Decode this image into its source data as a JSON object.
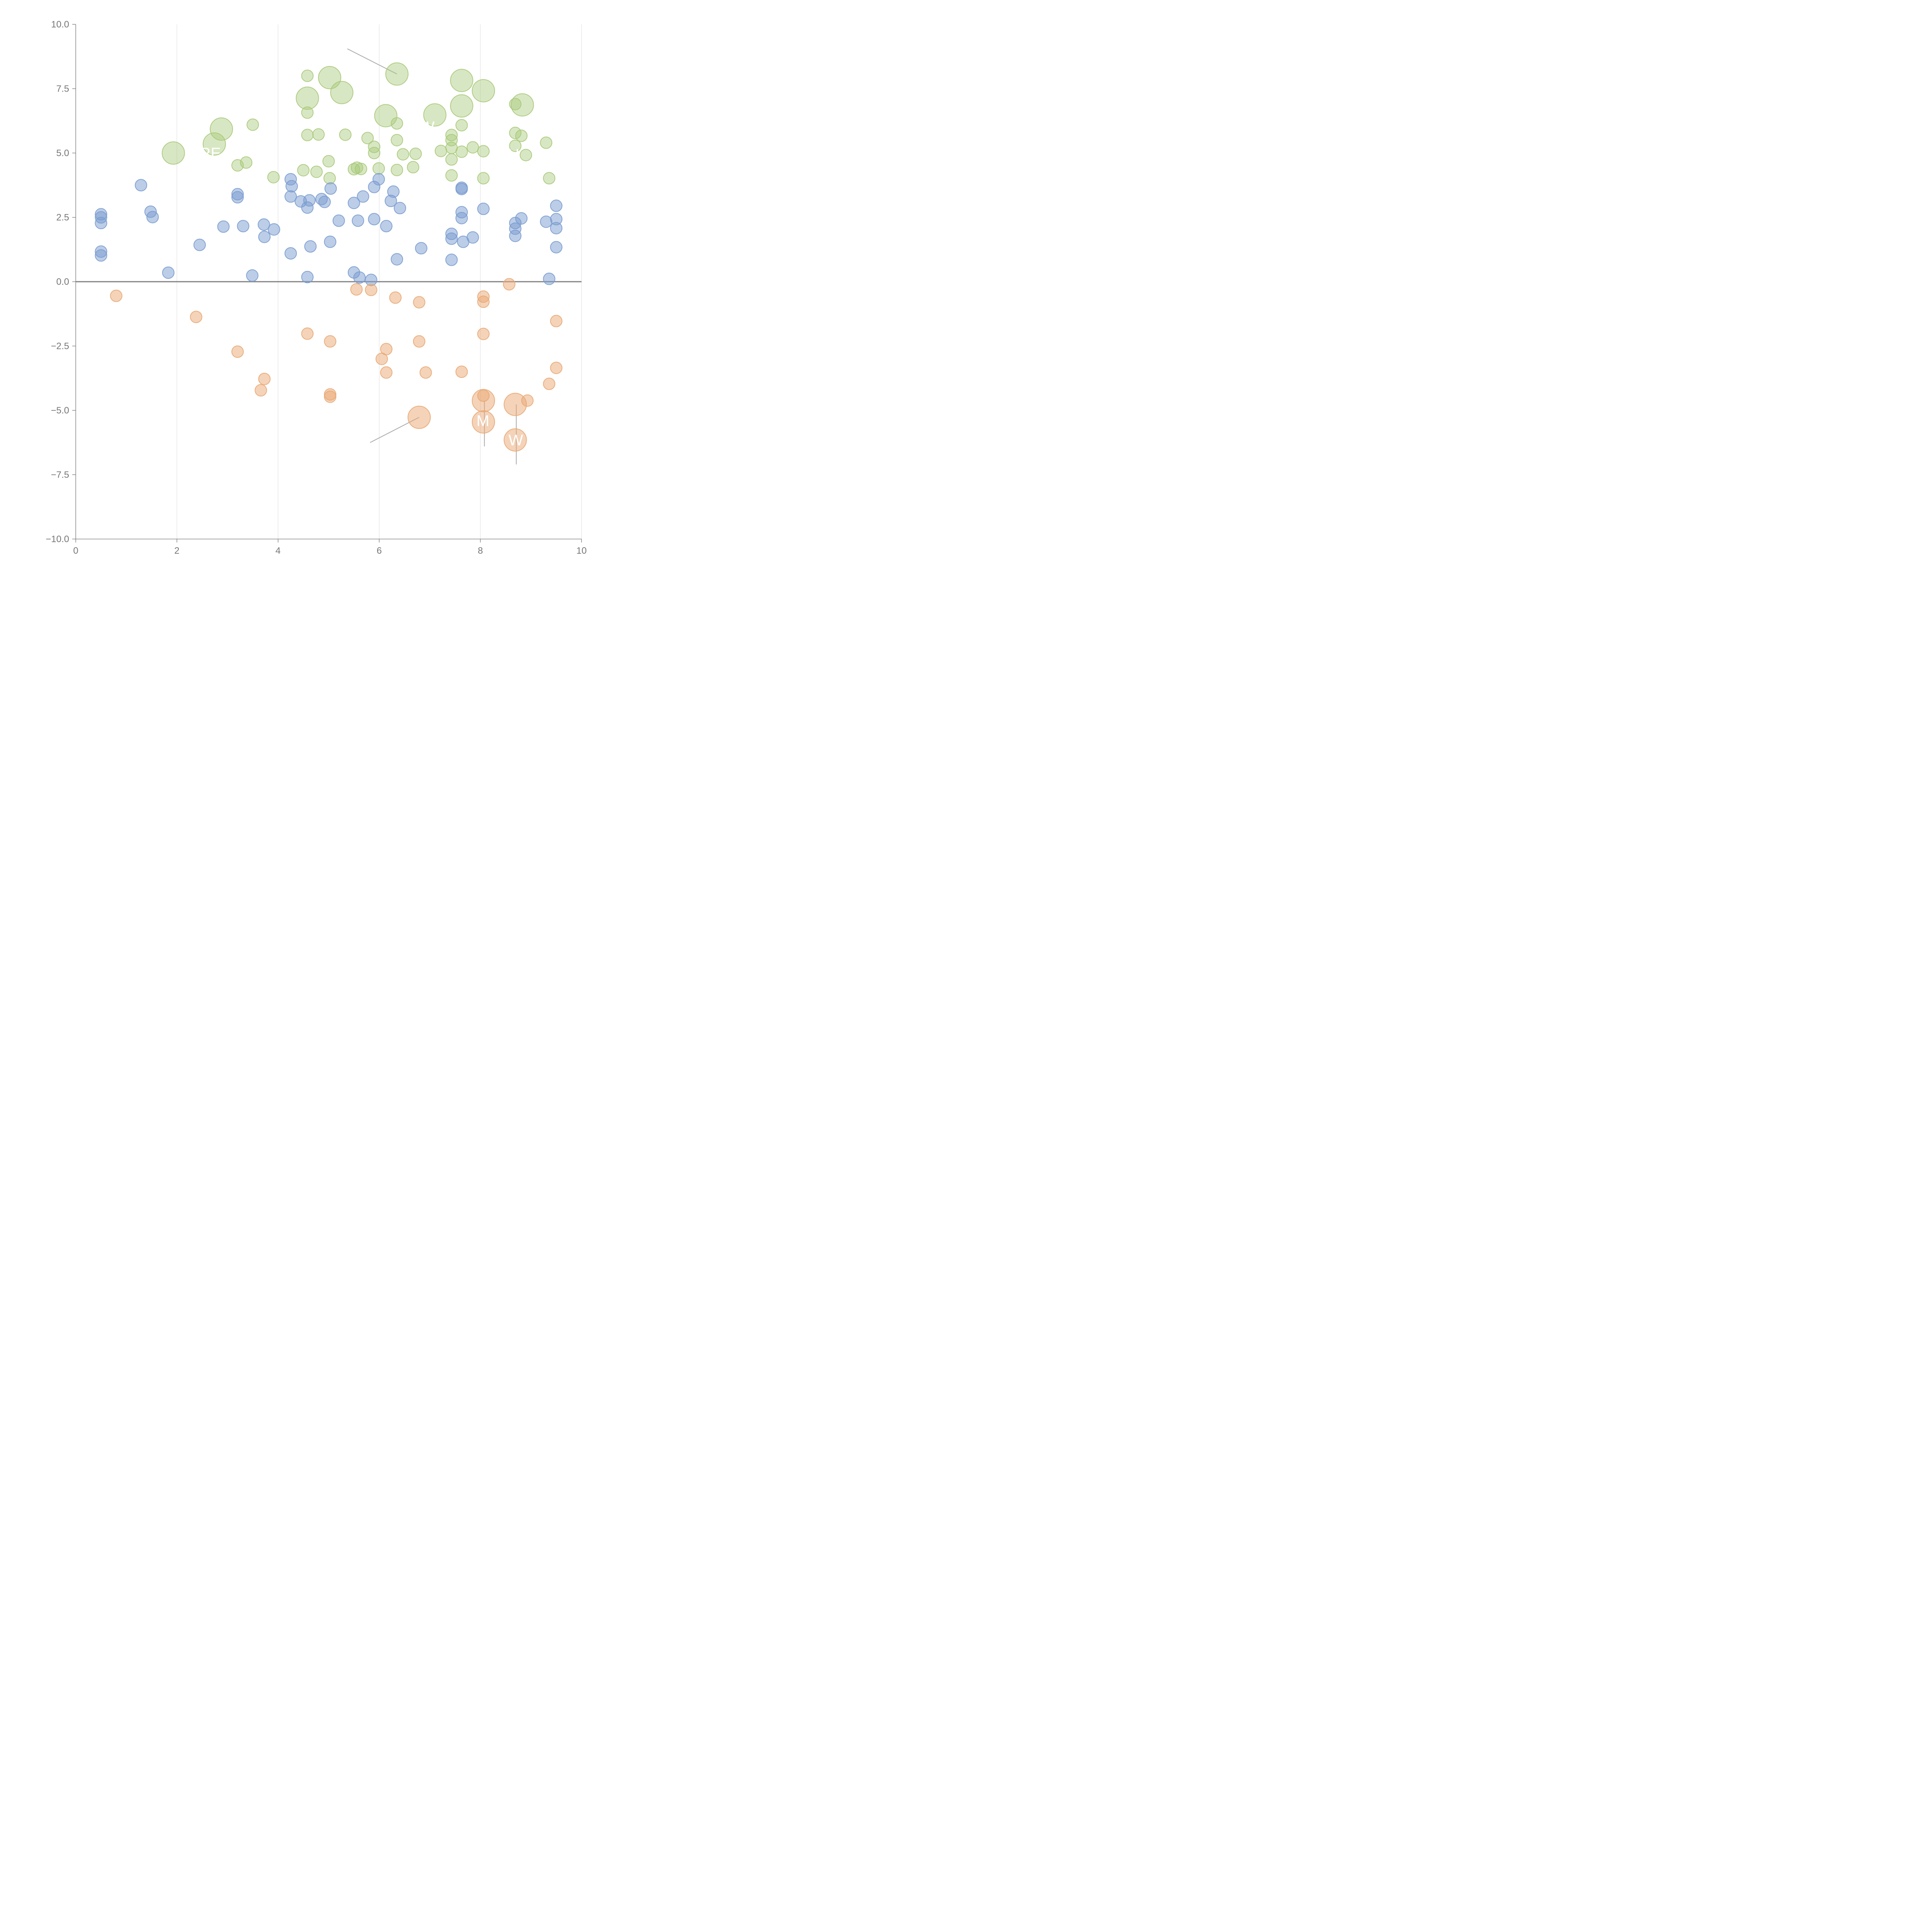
{
  "chart_data": {
    "type": "scatter",
    "title": "",
    "xlabel": "",
    "ylabel": "",
    "xlim": [
      0,
      10
    ],
    "ylim": [
      -10,
      10
    ],
    "xticks": [
      0,
      2,
      4,
      6,
      8,
      10
    ],
    "yticks": [
      -10,
      -7.5,
      -5,
      -2.5,
      0,
      2.5,
      5,
      7.5,
      10
    ],
    "xtick_labels": [
      "0",
      "2",
      "4",
      "6",
      "8",
      "10"
    ],
    "ytick_labels": [
      "−10.0",
      "−7.5",
      "−5.0",
      "−2.5",
      "0.0",
      "2.5",
      "5.0",
      "7.5",
      "10.0"
    ],
    "grid": "vertical",
    "colors": {
      "high": "#a9c97a",
      "mid": "#7a9cd0",
      "neg": "#e9a874",
      "axis": "#777777",
      "zero_line": "#808080",
      "grid": "#dddddd",
      "leader": "#aaaaaa"
    },
    "series": [
      {
        "name": "high",
        "points": [
          [
            1.93,
            5.0,
            1
          ],
          [
            2.74,
            5.35,
            1
          ],
          [
            2.88,
            5.93,
            1
          ],
          [
            3.2,
            4.52,
            0
          ],
          [
            3.37,
            4.63,
            0
          ],
          [
            3.5,
            6.1,
            0
          ],
          [
            3.91,
            4.06,
            0
          ],
          [
            4.5,
            4.33,
            0
          ],
          [
            4.58,
            8.0,
            0
          ],
          [
            4.58,
            7.13,
            1
          ],
          [
            4.58,
            6.57,
            0
          ],
          [
            4.58,
            5.7,
            0
          ],
          [
            4.76,
            4.27,
            0
          ],
          [
            4.8,
            5.72,
            0
          ],
          [
            5.0,
            4.68,
            0
          ],
          [
            5.02,
            4.02,
            0
          ],
          [
            5.02,
            7.93,
            1
          ],
          [
            5.26,
            7.35,
            1
          ],
          [
            5.33,
            5.71,
            0
          ],
          [
            5.5,
            4.37,
            0
          ],
          [
            5.56,
            4.43,
            0
          ],
          [
            5.64,
            4.38,
            0
          ],
          [
            5.77,
            5.58,
            0
          ],
          [
            5.9,
            5.24,
            0
          ],
          [
            5.9,
            5.0,
            0
          ],
          [
            5.99,
            4.4,
            0
          ],
          [
            6.13,
            6.45,
            1
          ],
          [
            6.35,
            8.07,
            1
          ],
          [
            6.35,
            6.15,
            0
          ],
          [
            6.35,
            5.5,
            0
          ],
          [
            6.35,
            4.34,
            0
          ],
          [
            6.47,
            4.95,
            0
          ],
          [
            6.67,
            4.45,
            0
          ],
          [
            6.72,
            4.97,
            0
          ],
          [
            7.1,
            6.48,
            1
          ],
          [
            7.22,
            5.08,
            0
          ],
          [
            7.43,
            5.7,
            0
          ],
          [
            7.43,
            5.5,
            0
          ],
          [
            7.43,
            5.2,
            0
          ],
          [
            7.43,
            4.75,
            0
          ],
          [
            7.43,
            4.13,
            0
          ],
          [
            7.63,
            7.82,
            1
          ],
          [
            7.63,
            6.83,
            1
          ],
          [
            7.63,
            6.08,
            0
          ],
          [
            7.63,
            5.05,
            0
          ],
          [
            7.85,
            5.22,
            0
          ],
          [
            8.06,
            7.42,
            1
          ],
          [
            8.06,
            5.07,
            0
          ],
          [
            8.06,
            4.02,
            0
          ],
          [
            8.69,
            6.9,
            0
          ],
          [
            8.69,
            5.78,
            0
          ],
          [
            8.69,
            5.28,
            0
          ],
          [
            8.81,
            5.67,
            0
          ],
          [
            8.83,
            6.87,
            1
          ],
          [
            8.9,
            4.92,
            0
          ],
          [
            9.3,
            5.4,
            0
          ],
          [
            9.36,
            4.02,
            0
          ]
        ]
      },
      {
        "name": "mid",
        "points": [
          [
            0.5,
            2.62
          ],
          [
            0.5,
            2.5
          ],
          [
            0.5,
            2.28
          ],
          [
            0.5,
            1.17
          ],
          [
            0.5,
            1.02
          ],
          [
            1.29,
            3.75
          ],
          [
            1.48,
            2.72
          ],
          [
            1.52,
            2.51
          ],
          [
            1.83,
            0.35
          ],
          [
            2.45,
            1.43
          ],
          [
            2.92,
            2.14
          ],
          [
            3.2,
            3.4
          ],
          [
            3.2,
            3.28
          ],
          [
            3.31,
            2.16
          ],
          [
            3.49,
            0.24
          ],
          [
            3.72,
            2.22
          ],
          [
            3.73,
            1.74
          ],
          [
            3.92,
            2.03
          ],
          [
            4.25,
            3.98
          ],
          [
            4.25,
            1.1
          ],
          [
            4.27,
            3.71
          ],
          [
            4.25,
            3.31
          ],
          [
            4.45,
            3.12
          ],
          [
            4.58,
            2.88
          ],
          [
            4.62,
            3.16
          ],
          [
            4.64,
            1.37
          ],
          [
            4.58,
            0.18
          ],
          [
            4.86,
            3.21
          ],
          [
            4.92,
            3.1
          ],
          [
            5.04,
            3.62
          ],
          [
            5.03,
            1.55
          ],
          [
            5.2,
            2.37
          ],
          [
            5.5,
            3.06
          ],
          [
            5.5,
            0.36
          ],
          [
            5.58,
            2.37
          ],
          [
            5.61,
            0.16
          ],
          [
            5.68,
            3.31
          ],
          [
            5.84,
            0.07
          ],
          [
            5.9,
            3.68
          ],
          [
            5.9,
            2.43
          ],
          [
            5.99,
            3.98
          ],
          [
            6.14,
            2.16
          ],
          [
            6.23,
            3.14
          ],
          [
            6.28,
            3.5
          ],
          [
            6.35,
            0.87
          ],
          [
            6.41,
            2.86
          ],
          [
            6.83,
            1.3
          ],
          [
            7.43,
            1.86
          ],
          [
            7.43,
            1.67
          ],
          [
            7.43,
            0.85
          ],
          [
            7.63,
            3.65
          ],
          [
            7.63,
            3.6
          ],
          [
            7.63,
            2.7
          ],
          [
            7.63,
            2.47
          ],
          [
            7.66,
            1.55
          ],
          [
            7.85,
            1.72
          ],
          [
            8.06,
            2.83
          ],
          [
            8.69,
            2.28
          ],
          [
            8.69,
            2.06
          ],
          [
            8.69,
            1.78
          ],
          [
            8.81,
            2.46
          ],
          [
            9.3,
            2.33
          ],
          [
            9.36,
            0.11
          ],
          [
            9.5,
            2.95
          ],
          [
            9.5,
            2.43
          ],
          [
            9.5,
            2.08
          ],
          [
            9.5,
            1.34
          ]
        ]
      },
      {
        "name": "neg",
        "points": [
          [
            0.8,
            -0.55,
            0
          ],
          [
            2.38,
            -1.37,
            0
          ],
          [
            3.2,
            -2.72,
            0
          ],
          [
            3.66,
            -4.22,
            0
          ],
          [
            3.73,
            -3.78,
            0
          ],
          [
            4.58,
            -2.02,
            0
          ],
          [
            5.03,
            -2.32,
            0
          ],
          [
            5.03,
            -4.38,
            0
          ],
          [
            5.03,
            -4.47,
            0
          ],
          [
            5.55,
            -0.3,
            0
          ],
          [
            5.84,
            -0.32,
            0
          ],
          [
            6.05,
            -3.0,
            0
          ],
          [
            6.14,
            -2.62,
            0
          ],
          [
            6.14,
            -3.53,
            0
          ],
          [
            6.32,
            -0.62,
            0
          ],
          [
            6.79,
            -0.8,
            0
          ],
          [
            6.79,
            -2.32,
            0
          ],
          [
            6.79,
            -5.27,
            1
          ],
          [
            6.92,
            -3.53,
            0
          ],
          [
            7.63,
            -3.5,
            0
          ],
          [
            8.06,
            -0.58,
            0
          ],
          [
            8.06,
            -0.78,
            0
          ],
          [
            8.06,
            -2.03,
            0
          ],
          [
            8.06,
            -4.43,
            0
          ],
          [
            8.06,
            -4.62,
            1
          ],
          [
            8.06,
            -5.45,
            1
          ],
          [
            8.57,
            -0.1,
            0
          ],
          [
            8.69,
            -4.77,
            1
          ],
          [
            8.69,
            -6.15,
            1
          ],
          [
            8.93,
            -4.62,
            0
          ],
          [
            9.36,
            -3.97,
            0
          ],
          [
            9.5,
            -1.53,
            0
          ],
          [
            9.5,
            -3.35,
            0
          ]
        ]
      }
    ],
    "annotations": [
      {
        "text": "RE",
        "x": 2.66,
        "y": 5.0
      },
      {
        "text": "W",
        "x": 6.95,
        "y": 6.02
      },
      {
        "text": "RU",
        "x": 8.55,
        "y": 4.95
      },
      {
        "text": "M",
        "x": 8.05,
        "y": -5.4
      },
      {
        "text": "W",
        "x": 8.7,
        "y": -6.15
      }
    ]
  }
}
